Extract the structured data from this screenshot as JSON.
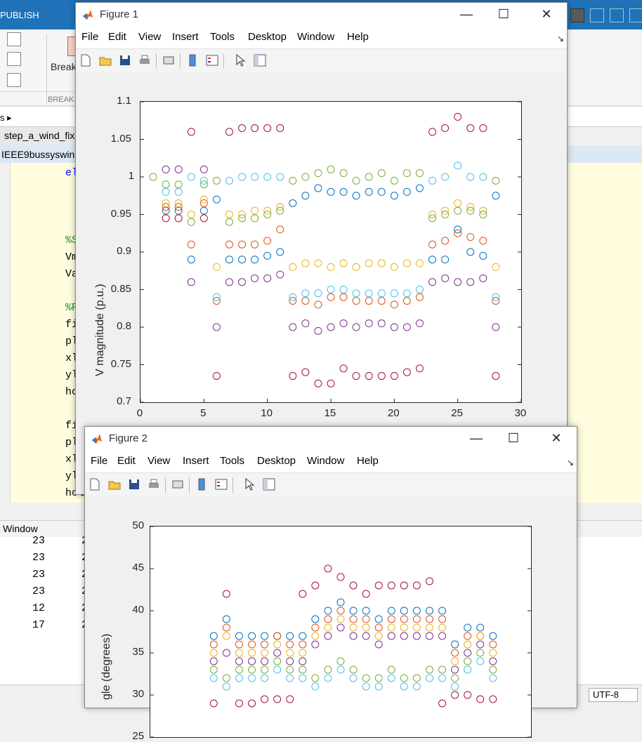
{
  "desktop": {
    "publish_tab": "PUBLISH",
    "breakpoints_label": "Break",
    "breakpoints_group": "BREAK",
    "breadcrumb": "s ▸",
    "editor_tab": "step_a_wind_fix",
    "file_path": "IEEE9bussyswind",
    "code_lines": [
      "el",
      "%S",
      "Vm",
      "Va",
      "%P",
      "fi",
      "pl",
      "xl",
      "yl",
      "ho",
      "fi",
      "plo",
      "xla",
      "yla",
      "hol"
    ],
    "command_window_title": "Window",
    "command_rows": [
      {
        "a": "23",
        "b": "2"
      },
      {
        "a": "23",
        "b": "2"
      },
      {
        "a": "23",
        "b": "2"
      },
      {
        "a": "23",
        "b": "2"
      },
      {
        "a": "12",
        "b": "2"
      },
      {
        "a": "17",
        "b": "2"
      }
    ],
    "encoding": "UTF-8"
  },
  "figure1": {
    "title": "Figure 1",
    "menu": [
      "File",
      "Edit",
      "View",
      "Insert",
      "Tools",
      "Desktop",
      "Window",
      "Help"
    ]
  },
  "figure2": {
    "title": "Figure 2",
    "menu": [
      "File",
      "Edit",
      "View",
      "Insert",
      "Tools",
      "Desktop",
      "Window",
      "Help"
    ]
  },
  "chart_data": [
    {
      "type": "scatter",
      "marker": "open-circle",
      "title": "",
      "xlabel": "",
      "ylabel": "V magnitude (p.u.)",
      "xlim": [
        0,
        30
      ],
      "ylim": [
        0.7,
        1.1
      ],
      "xticks": [
        0,
        5,
        10,
        15,
        20,
        25,
        30
      ],
      "yticks": [
        0.7,
        0.75,
        0.8,
        0.85,
        0.9,
        0.95,
        1,
        1.05,
        1.1
      ],
      "ytick_labels": [
        "0.7",
        "0.75",
        "0.8",
        "0.85",
        "0.9",
        "0.95",
        "1",
        "1.05",
        "1.1"
      ],
      "grid": false,
      "colors": [
        "#0072bd",
        "#d95319",
        "#edb120",
        "#7e2f8e",
        "#77ac30",
        "#4dbeee",
        "#a2142f"
      ],
      "x": [
        1,
        2,
        3,
        4,
        5,
        6,
        7,
        8,
        9,
        10,
        11,
        12,
        13,
        14,
        15,
        16,
        17,
        18,
        19,
        20,
        21,
        22,
        23,
        24,
        25,
        26,
        27,
        28
      ],
      "series": [
        {
          "values": [
            null,
            0.955,
            0.955,
            0.89,
            0.955,
            0.97,
            0.89,
            0.89,
            0.89,
            0.895,
            0.9,
            0.965,
            0.975,
            0.985,
            0.98,
            0.98,
            0.975,
            0.98,
            0.98,
            0.975,
            0.98,
            0.985,
            0.89,
            0.89,
            0.93,
            0.9,
            0.895,
            0.975
          ]
        },
        {
          "values": [
            null,
            0.96,
            0.96,
            0.91,
            0.965,
            0.835,
            0.91,
            0.91,
            0.91,
            0.915,
            0.93,
            0.835,
            0.835,
            0.83,
            0.84,
            0.84,
            0.835,
            0.835,
            0.835,
            0.83,
            0.835,
            0.84,
            0.91,
            0.915,
            0.925,
            0.92,
            0.915,
            0.835
          ]
        },
        {
          "values": [
            null,
            0.965,
            0.965,
            0.95,
            0.97,
            0.88,
            0.95,
            0.95,
            0.955,
            0.955,
            0.96,
            0.88,
            0.885,
            0.885,
            0.88,
            0.885,
            0.88,
            0.885,
            0.885,
            0.88,
            0.885,
            0.885,
            0.95,
            0.955,
            0.965,
            0.96,
            0.955,
            0.88
          ]
        },
        {
          "values": [
            null,
            1.01,
            1.01,
            0.86,
            1.01,
            0.8,
            0.86,
            0.86,
            0.865,
            0.865,
            0.87,
            0.8,
            0.805,
            0.795,
            0.8,
            0.805,
            0.8,
            0.805,
            0.805,
            0.8,
            0.8,
            0.805,
            0.86,
            0.865,
            0.86,
            0.86,
            0.865,
            0.8
          ]
        },
        {
          "values": [
            1.0,
            0.99,
            0.99,
            0.94,
            0.99,
            0.995,
            0.94,
            0.945,
            0.945,
            0.95,
            0.955,
            0.995,
            1.0,
            1.005,
            1.01,
            1.005,
            0.995,
            1.0,
            1.005,
            0.995,
            1.005,
            1.005,
            0.945,
            0.95,
            0.955,
            0.955,
            0.95,
            0.995
          ]
        },
        {
          "values": [
            null,
            0.98,
            0.98,
            1.0,
            0.995,
            0.84,
            0.995,
            1.0,
            1.0,
            1.0,
            1.0,
            0.84,
            0.845,
            0.845,
            0.85,
            0.85,
            0.845,
            0.845,
            0.845,
            0.845,
            0.845,
            0.85,
            0.995,
            1.0,
            1.015,
            1.0,
            1.0,
            0.84
          ]
        },
        {
          "values": [
            null,
            0.945,
            0.945,
            1.06,
            0.945,
            0.735,
            1.06,
            1.065,
            1.065,
            1.065,
            1.065,
            0.735,
            0.74,
            0.725,
            0.725,
            0.745,
            0.735,
            0.735,
            0.735,
            0.735,
            0.74,
            0.745,
            1.06,
            1.065,
            1.08,
            1.065,
            1.065,
            0.735
          ]
        }
      ]
    },
    {
      "type": "scatter",
      "marker": "open-circle",
      "title": "",
      "xlabel": "",
      "ylabel": "gle (degrees)",
      "ylim": [
        25,
        50
      ],
      "yticks": [
        25,
        30,
        35,
        40,
        45,
        50
      ],
      "grid": false,
      "x": [
        5,
        6,
        7,
        8,
        9,
        10,
        11,
        12,
        13,
        14,
        15,
        16,
        17,
        18,
        19,
        20,
        21,
        22,
        23,
        24,
        25,
        26,
        27
      ],
      "series": [
        {
          "values": [
            37,
            39,
            37,
            37,
            37,
            37,
            37,
            37,
            39,
            40,
            41,
            40,
            40,
            39,
            40,
            40,
            40,
            40,
            40,
            36,
            38,
            38,
            37
          ]
        },
        {
          "values": [
            36,
            38,
            36,
            36,
            36,
            37,
            36,
            36,
            38,
            39,
            40,
            39,
            39,
            38,
            39,
            39,
            39,
            39,
            39,
            35,
            37,
            37,
            36
          ]
        },
        {
          "values": [
            35,
            37,
            35,
            35,
            35,
            36,
            35,
            35,
            37,
            38,
            39,
            38,
            38,
            37,
            38,
            38,
            38,
            38,
            38,
            34,
            36,
            37,
            35
          ]
        },
        {
          "values": [
            34,
            35,
            34,
            34,
            34,
            35,
            34,
            34,
            36,
            37,
            38,
            37,
            37,
            36,
            37,
            37,
            37,
            37,
            37,
            33,
            35,
            36,
            34
          ]
        },
        {
          "values": [
            33,
            32,
            33,
            33,
            33,
            34,
            33,
            33,
            32,
            33,
            34,
            33,
            32,
            32,
            33,
            32,
            32,
            33,
            33,
            32,
            34,
            35,
            33
          ]
        },
        {
          "values": [
            32,
            31,
            32,
            32,
            32,
            33,
            32,
            32,
            31,
            32,
            33,
            32,
            31,
            31,
            32,
            31,
            31,
            32,
            32,
            31,
            33,
            34,
            32
          ]
        },
        {
          "values": [
            29,
            42,
            29,
            29,
            29.5,
            29.5,
            29.5,
            42,
            43,
            45,
            44,
            43,
            42,
            43,
            43,
            43,
            43,
            43.5,
            29,
            30,
            30,
            29.5,
            29.5
          ]
        }
      ]
    }
  ]
}
